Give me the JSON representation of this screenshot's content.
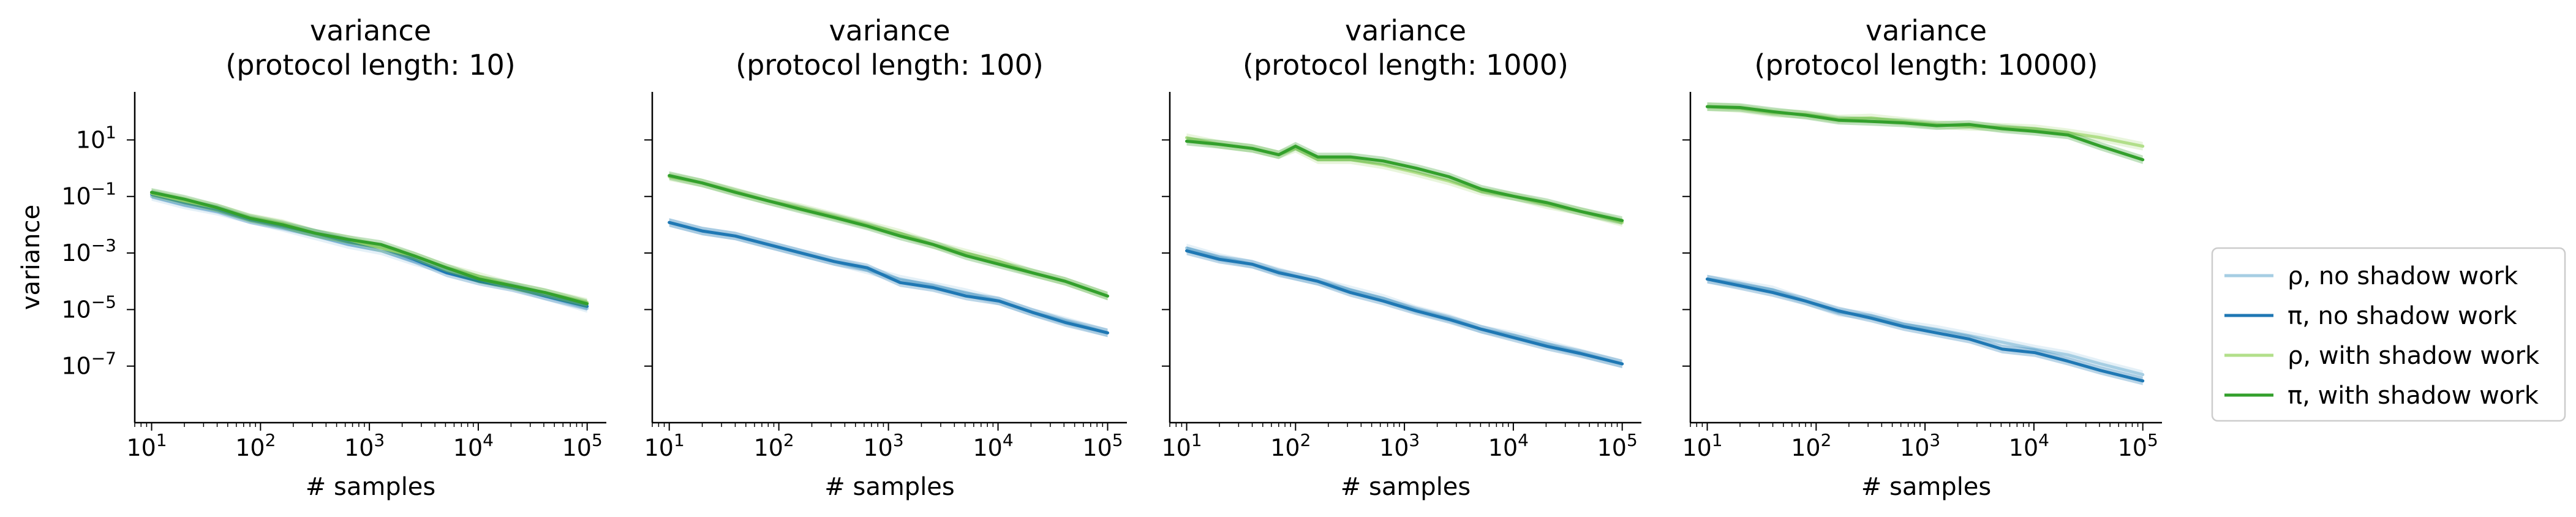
{
  "chart_data": [
    {
      "type": "line",
      "title_line1": "variance",
      "title_line2": "(protocol length: 10)",
      "xlabel": "# samples",
      "ylabel": "variance",
      "xscale": "log",
      "yscale": "log",
      "xlim": [
        7,
        150000
      ],
      "ylim": [
        1e-09,
        500
      ],
      "x_ticks": [
        {
          "label": "10",
          "exp": "1",
          "value": 10
        },
        {
          "label": "10",
          "exp": "2",
          "value": 100
        },
        {
          "label": "10",
          "exp": "3",
          "value": 1000
        },
        {
          "label": "10",
          "exp": "4",
          "value": 10000
        },
        {
          "label": "10",
          "exp": "5",
          "value": 100000
        }
      ],
      "y_ticks": [
        {
          "label": "10",
          "exp": "1",
          "value": 10
        },
        {
          "label": "10",
          "exp": "−1",
          "value": 0.1
        },
        {
          "label": "10",
          "exp": "−3",
          "value": 0.001
        },
        {
          "label": "10",
          "exp": "−5",
          "value": 1e-05
        },
        {
          "label": "10",
          "exp": "−7",
          "value": 1e-07
        }
      ],
      "x": [
        10,
        20,
        40,
        80,
        160,
        320,
        640,
        1280,
        2560,
        5120,
        10240,
        20480,
        40960,
        100000
      ],
      "series": [
        {
          "name": "ρ, no shadow work",
          "color": "#a6cee3",
          "values": [
            0.1,
            0.05,
            0.03,
            0.015,
            0.008,
            0.004,
            0.002,
            0.0012,
            0.0005,
            0.00025,
            0.00012,
            7e-05,
            3e-05,
            1.1e-05
          ]
        },
        {
          "name": "π, no shadow work",
          "color": "#1f78b4",
          "values": [
            0.12,
            0.06,
            0.035,
            0.015,
            0.009,
            0.005,
            0.0025,
            0.0015,
            0.0006,
            0.0002,
            0.0001,
            6e-05,
            3e-05,
            1.3e-05
          ]
        },
        {
          "name": "ρ, with shadow work",
          "color": "#b2df8a",
          "values": [
            0.13,
            0.07,
            0.04,
            0.018,
            0.011,
            0.005,
            0.003,
            0.0015,
            0.0008,
            0.0003,
            0.00015,
            7e-05,
            4e-05,
            1.8e-05
          ]
        },
        {
          "name": "π, with shadow work",
          "color": "#33a02c",
          "values": [
            0.14,
            0.08,
            0.04,
            0.017,
            0.01,
            0.005,
            0.003,
            0.002,
            0.0008,
            0.0003,
            0.00012,
            7e-05,
            4e-05,
            1.6e-05
          ]
        }
      ]
    },
    {
      "type": "line",
      "title_line1": "variance",
      "title_line2": "(protocol length: 100)",
      "xlabel": "# samples",
      "ylabel": "",
      "xscale": "log",
      "yscale": "log",
      "xlim": [
        7,
        150000
      ],
      "ylim": [
        1e-09,
        500
      ],
      "x_ticks": [
        {
          "label": "10",
          "exp": "1",
          "value": 10
        },
        {
          "label": "10",
          "exp": "2",
          "value": 100
        },
        {
          "label": "10",
          "exp": "3",
          "value": 1000
        },
        {
          "label": "10",
          "exp": "4",
          "value": 10000
        },
        {
          "label": "10",
          "exp": "5",
          "value": 100000
        }
      ],
      "y_ticks": [
        {
          "label": "",
          "exp": "",
          "value": 10
        },
        {
          "label": "",
          "exp": "",
          "value": 0.1
        },
        {
          "label": "",
          "exp": "",
          "value": 0.001
        },
        {
          "label": "",
          "exp": "",
          "value": 1e-05
        },
        {
          "label": "",
          "exp": "",
          "value": 1e-07
        }
      ],
      "x": [
        10,
        20,
        40,
        80,
        160,
        320,
        640,
        1280,
        2560,
        5120,
        10240,
        20480,
        40960,
        100000
      ],
      "series": [
        {
          "name": "ρ, no shadow work",
          "color": "#a6cee3",
          "values": [
            0.012,
            0.006,
            0.004,
            0.002,
            0.001,
            0.0005,
            0.00025,
            0.00012,
            7e-05,
            4e-05,
            2e-05,
            8e-06,
            4e-06,
            1.5e-06
          ]
        },
        {
          "name": "π, no shadow work",
          "color": "#1f78b4",
          "values": [
            0.012,
            0.006,
            0.004,
            0.002,
            0.001,
            0.0005,
            0.0003,
            9e-05,
            6e-05,
            3e-05,
            2e-05,
            8e-06,
            3.5e-06,
            1.5e-06
          ]
        },
        {
          "name": "ρ, with shadow work",
          "color": "#b2df8a",
          "values": [
            0.5,
            0.3,
            0.15,
            0.07,
            0.04,
            0.02,
            0.01,
            0.005,
            0.002,
            0.001,
            0.0005,
            0.0002,
            0.0001,
            3e-05
          ]
        },
        {
          "name": "π, with shadow work",
          "color": "#33a02c",
          "values": [
            0.55,
            0.3,
            0.14,
            0.07,
            0.035,
            0.018,
            0.009,
            0.004,
            0.002,
            0.0008,
            0.0004,
            0.0002,
            0.0001,
            3e-05
          ]
        }
      ]
    },
    {
      "type": "line",
      "title_line1": "variance",
      "title_line2": "(protocol length: 1000)",
      "xlabel": "# samples",
      "ylabel": "",
      "xscale": "log",
      "yscale": "log",
      "xlim": [
        7,
        150000
      ],
      "ylim": [
        1e-09,
        500
      ],
      "x_ticks": [
        {
          "label": "10",
          "exp": "1",
          "value": 10
        },
        {
          "label": "10",
          "exp": "2",
          "value": 100
        },
        {
          "label": "10",
          "exp": "3",
          "value": 1000
        },
        {
          "label": "10",
          "exp": "4",
          "value": 10000
        },
        {
          "label": "10",
          "exp": "5",
          "value": 100000
        }
      ],
      "y_ticks": [
        {
          "label": "",
          "exp": "",
          "value": 10
        },
        {
          "label": "",
          "exp": "",
          "value": 0.1
        },
        {
          "label": "",
          "exp": "",
          "value": 0.001
        },
        {
          "label": "",
          "exp": "",
          "value": 1e-05
        },
        {
          "label": "",
          "exp": "",
          "value": 1e-07
        }
      ],
      "x": [
        10,
        20,
        40,
        70,
        100,
        160,
        320,
        640,
        1280,
        2560,
        5120,
        10240,
        20480,
        40960,
        100000
      ],
      "series": [
        {
          "name": "ρ, no shadow work",
          "color": "#a6cee3",
          "values": [
            0.0015,
            0.0007,
            0.0004,
            0.00022,
            0.00015,
            0.0001,
            5e-05,
            2.5e-05,
            1e-05,
            5e-06,
            2e-06,
            1.2e-06,
            6e-07,
            3e-07,
            1.2e-07
          ]
        },
        {
          "name": "π, no shadow work",
          "color": "#1f78b4",
          "values": [
            0.0012,
            0.0006,
            0.0004,
            0.0002,
            0.00015,
            0.0001,
            4e-05,
            2e-05,
            9e-06,
            4.5e-06,
            2e-06,
            1e-06,
            5e-07,
            2.8e-07,
            1.2e-07
          ]
        },
        {
          "name": "ρ, with shadow work",
          "color": "#b2df8a",
          "values": [
            12,
            7,
            5,
            3,
            5,
            2,
            2,
            1.3,
            0.7,
            0.35,
            0.15,
            0.1,
            0.05,
            0.03,
            0.012
          ]
        },
        {
          "name": "π, with shadow work",
          "color": "#33a02c",
          "values": [
            9,
            7,
            5,
            3,
            6,
            2.5,
            2.5,
            1.8,
            1,
            0.5,
            0.18,
            0.1,
            0.06,
            0.03,
            0.014
          ]
        }
      ]
    },
    {
      "type": "line",
      "title_line1": "variance",
      "title_line2": "(protocol length: 10000)",
      "xlabel": "# samples",
      "ylabel": "",
      "xscale": "log",
      "yscale": "log",
      "xlim": [
        7,
        150000
      ],
      "ylim": [
        1e-09,
        500
      ],
      "x_ticks": [
        {
          "label": "10",
          "exp": "1",
          "value": 10
        },
        {
          "label": "10",
          "exp": "2",
          "value": 100
        },
        {
          "label": "10",
          "exp": "3",
          "value": 1000
        },
        {
          "label": "10",
          "exp": "4",
          "value": 10000
        },
        {
          "label": "10",
          "exp": "5",
          "value": 100000
        }
      ],
      "y_ticks": [
        {
          "label": "",
          "exp": "",
          "value": 10
        },
        {
          "label": "",
          "exp": "",
          "value": 0.1
        },
        {
          "label": "",
          "exp": "",
          "value": 0.001
        },
        {
          "label": "",
          "exp": "",
          "value": 1e-05
        },
        {
          "label": "",
          "exp": "",
          "value": 1e-07
        }
      ],
      "x": [
        10,
        20,
        40,
        80,
        160,
        320,
        640,
        1280,
        2560,
        5120,
        10240,
        20480,
        40960,
        100000
      ],
      "series": [
        {
          "name": "ρ, no shadow work",
          "color": "#a6cee3",
          "values": [
            0.00012,
            8e-05,
            5e-05,
            2e-05,
            8e-06,
            6e-06,
            3e-06,
            2e-06,
            1.2e-06,
            7e-07,
            4e-07,
            2.5e-07,
            1.2e-07,
            5e-08
          ]
        },
        {
          "name": "π, no shadow work",
          "color": "#1f78b4",
          "values": [
            0.00012,
            7e-05,
            4e-05,
            2e-05,
            9e-06,
            5e-06,
            2.5e-06,
            1.5e-06,
            9e-07,
            4e-07,
            3e-07,
            1.5e-07,
            7e-08,
            3e-08
          ]
        },
        {
          "name": "ρ, with shadow work",
          "color": "#b2df8a",
          "values": [
            150,
            130,
            90,
            80,
            55,
            60,
            45,
            35,
            30,
            28,
            25,
            18,
            12,
            6
          ]
        },
        {
          "name": "π, with shadow work",
          "color": "#33a02c",
          "values": [
            150,
            140,
            100,
            75,
            50,
            45,
            40,
            32,
            35,
            25,
            20,
            15,
            6,
            2
          ]
        }
      ]
    }
  ],
  "legend": {
    "placement": "right",
    "entries": [
      {
        "label": "ρ, no shadow work",
        "color": "#a6cee3"
      },
      {
        "label": "π, no shadow work",
        "color": "#1f78b4"
      },
      {
        "label": "ρ, with shadow work",
        "color": "#b2df8a"
      },
      {
        "label": "π, with shadow work",
        "color": "#33a02c"
      }
    ]
  }
}
